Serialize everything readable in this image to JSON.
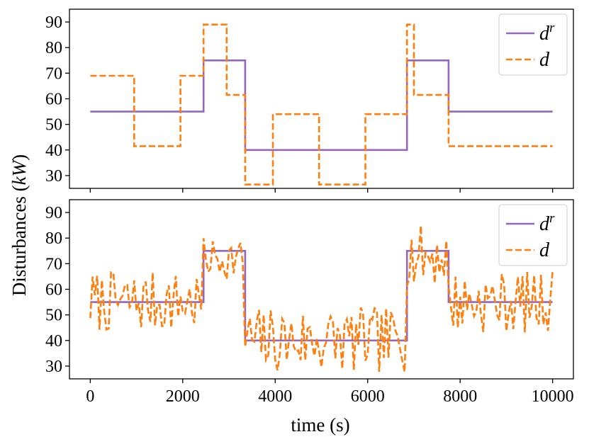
{
  "chart_data": {
    "type": "line",
    "ylabel": "Disturbances (kW)",
    "ylabel_plain": "Disturbances (",
    "ylabel_unit": "kW",
    "ylabel_close": ")",
    "xlabel": "time (s)",
    "xlim": [
      -450,
      10450
    ],
    "x_ticks": [
      0,
      2000,
      4000,
      6000,
      8000,
      10000
    ],
    "x_tick_labels": [
      "0",
      "2000",
      "4000",
      "6000",
      "8000",
      "10000"
    ],
    "panels": [
      {
        "name": "top",
        "ylim": [
          25,
          95
        ],
        "y_ticks": [
          30,
          40,
          50,
          60,
          70,
          80,
          90
        ],
        "y_tick_labels": [
          "30",
          "40",
          "50",
          "60",
          "70",
          "80",
          "90"
        ],
        "show_x_tick_labels": false,
        "legend": {
          "position": "upper right",
          "entries": [
            "d^r",
            "d"
          ]
        },
        "series": [
          {
            "name": "d^r",
            "color": "#9467bd",
            "style": "solid",
            "x": [
              0,
              2450,
              2450,
              3350,
              3350,
              6850,
              6850,
              7750,
              7750,
              10000
            ],
            "y": [
              55,
              55,
              75,
              75,
              40,
              40,
              75,
              75,
              55,
              55
            ]
          },
          {
            "name": "d",
            "color": "#ff7f0e",
            "style": "dashed",
            "x": [
              0,
              950,
              950,
              1950,
              1950,
              2450,
              2450,
              2950,
              2950,
              3350,
              3350,
              3950,
              3950,
              4950,
              4950,
              5950,
              5950,
              6850,
              6850,
              7000,
              7000,
              7750,
              7750,
              10000
            ],
            "y": [
              69,
              69,
              41.5,
              41.5,
              69,
              69,
              89,
              89,
              61.5,
              61.5,
              26.5,
              26.5,
              54,
              54,
              26.5,
              26.5,
              54,
              54,
              89,
              89,
              61.5,
              61.5,
              41.5,
              41.5
            ]
          }
        ]
      },
      {
        "name": "bottom",
        "ylim": [
          25,
          95
        ],
        "y_ticks": [
          30,
          40,
          50,
          60,
          70,
          80,
          90
        ],
        "y_tick_labels": [
          "30",
          "40",
          "50",
          "60",
          "70",
          "80",
          "90"
        ],
        "show_x_tick_labels": true,
        "legend": {
          "position": "upper right",
          "entries": [
            "d^r",
            "d"
          ]
        },
        "noise_seed": 7,
        "series": [
          {
            "name": "d^r",
            "color": "#9467bd",
            "style": "solid",
            "x": [
              0,
              2450,
              2450,
              3350,
              3350,
              6850,
              6850,
              7750,
              7750,
              10000
            ],
            "y": [
              55,
              55,
              75,
              75,
              40,
              40,
              75,
              75,
              55,
              55
            ]
          },
          {
            "name": "d",
            "color": "#ff7f0e",
            "style": "dashed",
            "generated": "noisy samples every 50 s around d^r",
            "segments": [
              {
                "x0": 0,
                "x1": 2450,
                "mean": 55,
                "amp": 12
              },
              {
                "x0": 2450,
                "x1": 3350,
                "mean": 72,
                "amp": 8
              },
              {
                "x0": 3350,
                "x1": 6850,
                "mean": 40,
                "amp": 13
              },
              {
                "x0": 6850,
                "x1": 7750,
                "mean": 73,
                "amp": 12
              },
              {
                "x0": 7750,
                "x1": 10000,
                "mean": 55,
                "amp": 12
              }
            ]
          }
        ]
      }
    ]
  },
  "legend_labels": {
    "dr_base": "d",
    "dr_sup": "r",
    "d": "d"
  }
}
